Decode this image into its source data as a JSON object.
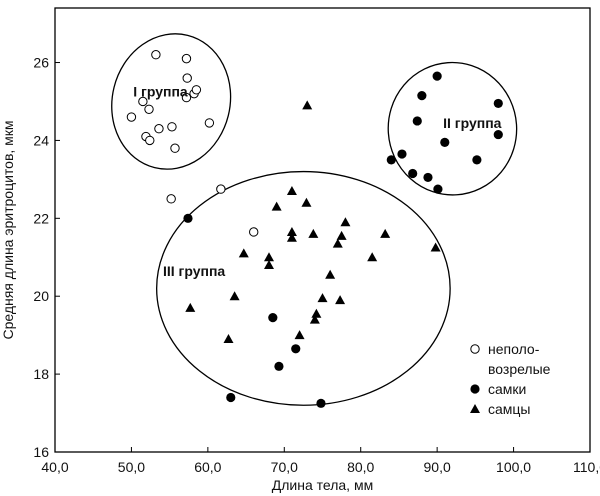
{
  "chart_data": {
    "type": "scatter",
    "xlabel": "Длина тела, мм",
    "ylabel": "Средняя длина эритроцитов, мкм",
    "xlim": [
      40,
      110
    ],
    "ylim": [
      16,
      27.4
    ],
    "xticks": [
      "40,0",
      "50,0",
      "60,0",
      "70,0",
      "80,0",
      "90,0",
      "100,0",
      "110,0"
    ],
    "yticks": [
      "16",
      "18",
      "20",
      "22",
      "24",
      "26"
    ],
    "grid": false,
    "legend": "right",
    "series": [
      {
        "name": "неполо-\nвозрелые",
        "marker": "open-circle",
        "points": [
          [
            53.2,
            26.2
          ],
          [
            57.2,
            26.1
          ],
          [
            51.5,
            25.0
          ],
          [
            57.3,
            25.6
          ],
          [
            58.2,
            25.2
          ],
          [
            58.5,
            25.3
          ],
          [
            57.2,
            25.1
          ],
          [
            52.3,
            24.8
          ],
          [
            50.0,
            24.6
          ],
          [
            60.2,
            24.45
          ],
          [
            53.6,
            24.3
          ],
          [
            55.3,
            24.35
          ],
          [
            51.9,
            24.1
          ],
          [
            52.4,
            24.0
          ],
          [
            55.7,
            23.8
          ],
          [
            55.2,
            22.5
          ],
          [
            61.7,
            22.75
          ],
          [
            66.0,
            21.65
          ]
        ]
      },
      {
        "name": "самки",
        "marker": "filled-circle",
        "points": [
          [
            90.0,
            25.65
          ],
          [
            88.0,
            25.15
          ],
          [
            98.0,
            24.95
          ],
          [
            87.4,
            24.5
          ],
          [
            91.0,
            23.95
          ],
          [
            98.0,
            24.15
          ],
          [
            85.4,
            23.65
          ],
          [
            84.0,
            23.5
          ],
          [
            95.2,
            23.5
          ],
          [
            86.8,
            23.15
          ],
          [
            88.8,
            23.05
          ],
          [
            90.1,
            22.75
          ],
          [
            57.4,
            22.0
          ],
          [
            68.5,
            19.45
          ],
          [
            71.5,
            18.65
          ],
          [
            69.3,
            18.2
          ],
          [
            63.0,
            17.4
          ],
          [
            74.8,
            17.25
          ]
        ]
      },
      {
        "name": "самцы",
        "marker": "filled-triangle",
        "points": [
          [
            73.0,
            24.9
          ],
          [
            71.0,
            22.7
          ],
          [
            69.0,
            22.3
          ],
          [
            72.9,
            22.4
          ],
          [
            78.0,
            21.9
          ],
          [
            71.0,
            21.65
          ],
          [
            73.8,
            21.6
          ],
          [
            77.5,
            21.55
          ],
          [
            71.0,
            21.5
          ],
          [
            77.0,
            21.35
          ],
          [
            83.2,
            21.6
          ],
          [
            64.7,
            21.1
          ],
          [
            68.0,
            21.0
          ],
          [
            68.0,
            20.8
          ],
          [
            81.5,
            21.0
          ],
          [
            89.8,
            21.25
          ],
          [
            76.0,
            20.55
          ],
          [
            63.5,
            20.0
          ],
          [
            75.0,
            19.95
          ],
          [
            77.3,
            19.9
          ],
          [
            57.7,
            19.7
          ],
          [
            74.2,
            19.55
          ],
          [
            74.0,
            19.4
          ],
          [
            72.0,
            19.0
          ],
          [
            62.7,
            18.9
          ]
        ]
      }
    ],
    "annotations": [
      {
        "text": "I группа",
        "x": 53.8,
        "y": 25.25
      },
      {
        "text": "II группа",
        "x": 94.6,
        "y": 24.45
      },
      {
        "text": "III группа",
        "x": 58.2,
        "y": 20.65
      }
    ],
    "clusters": [
      {
        "cx": 55.2,
        "cy": 25.0,
        "rx": 7.7,
        "ry": 1.75,
        "rotate": 14
      },
      {
        "cx": 92.0,
        "cy": 24.3,
        "rx": 8.4,
        "ry": 1.7,
        "rotate": -4
      },
      {
        "cx": 72.5,
        "cy": 20.2,
        "rx": 19.2,
        "ry": 3.0,
        "rotate": 0
      }
    ]
  }
}
